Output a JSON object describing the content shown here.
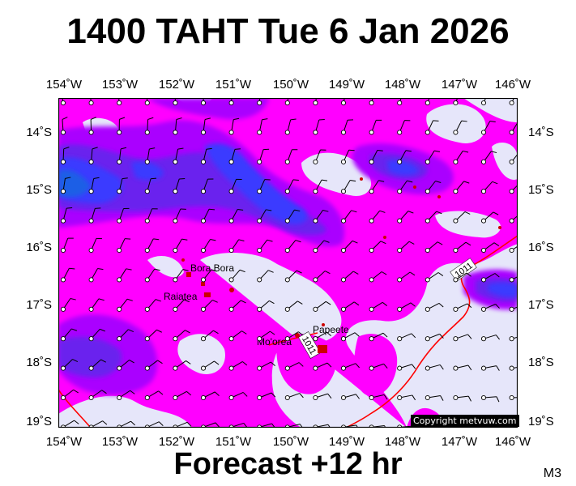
{
  "title": "1400 TAHT Tue 6 Jan 2026",
  "subtitle": "Forecast +12 hr",
  "corner_code": "M3",
  "copyright": "Copyright metvuw.com",
  "map": {
    "lon_labels": [
      "154˚W",
      "153˚W",
      "152˚W",
      "151˚W",
      "150˚W",
      "149˚W",
      "148˚W",
      "147˚W",
      "146˚W"
    ],
    "lat_labels": [
      "14˚S",
      "15˚S",
      "16˚S",
      "17˚S",
      "18˚S",
      "19˚S"
    ],
    "places": [
      {
        "name": "Bora Bora"
      },
      {
        "name": "Raiatea"
      },
      {
        "name": "Mo'orea"
      },
      {
        "name": "Papeete"
      }
    ],
    "isobar_labels": [
      "1011",
      "1011"
    ],
    "colors": {
      "land": "#cc0000",
      "background_light": "#e6e6fa",
      "magenta": "#ff00ff",
      "violet": "#aa00ff",
      "blue_violet": "#6a22ee",
      "blue": "#3b3bff",
      "deep_blue": "#1f5fe6",
      "isobar": "#ff0000"
    }
  }
}
